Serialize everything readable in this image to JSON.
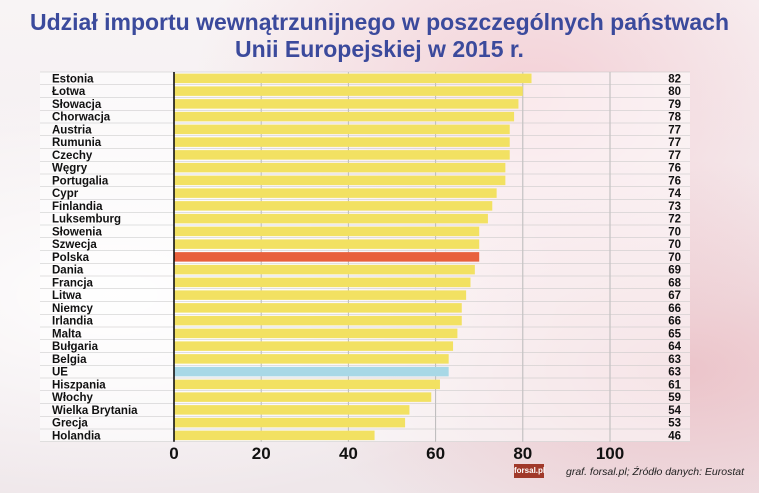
{
  "header": {
    "title_line1": "Udział importu wewnątrzunijnego w poszczególnych państwach",
    "title_line2": "Unii Europejskiej w 2015 r."
  },
  "footer": {
    "logo_text": "forsal.pl",
    "source": "graf. forsal.pl; Źródło danych: Eurostat"
  },
  "colors": {
    "default_bar": "#f2e162",
    "highlight_poland": "#e8603c",
    "highlight_eu": "#a8d8e6",
    "title": "#3b4a9c"
  },
  "chart_data": {
    "type": "bar",
    "orientation": "horizontal",
    "categories": [
      "Estonia",
      "Łotwa",
      "Słowacja",
      "Chorwacja",
      "Austria",
      "Rumunia",
      "Czechy",
      "Węgry",
      "Portugalia",
      "Cypr",
      "Finlandia",
      "Luksemburg",
      "Słowenia",
      "Szwecja",
      "Polska",
      "Dania",
      "Francja",
      "Litwa",
      "Niemcy",
      "Irlandia",
      "Malta",
      "Bułgaria",
      "Belgia",
      "UE",
      "Hiszpania",
      "Włochy",
      "Wielka Brytania",
      "Grecja",
      "Holandia"
    ],
    "values": [
      82,
      80,
      79,
      78,
      77,
      77,
      77,
      76,
      76,
      74,
      73,
      72,
      70,
      70,
      70,
      69,
      68,
      67,
      66,
      66,
      65,
      64,
      63,
      63,
      61,
      59,
      54,
      53,
      46
    ],
    "value_labels": [
      "82",
      "80",
      "79",
      "78",
      "77",
      "77",
      "77",
      "76",
      "76",
      "74",
      "73",
      "72",
      "70",
      "70",
      "70",
      "69",
      "68",
      "67",
      "66",
      "66",
      "65",
      "64",
      "63",
      "63",
      "61",
      "59",
      "54",
      "53",
      "46"
    ],
    "highlight": {
      "Polska": "highlight_poland",
      "UE": "highlight_eu"
    },
    "xlim": [
      0,
      100
    ],
    "xticks": [
      "0",
      "20",
      "40",
      "60",
      "80",
      "100"
    ],
    "grid": true,
    "title": "Udział importu wewnątrzunijnego w poszczególnych państwach Unii Europejskiej w 2015 r."
  }
}
